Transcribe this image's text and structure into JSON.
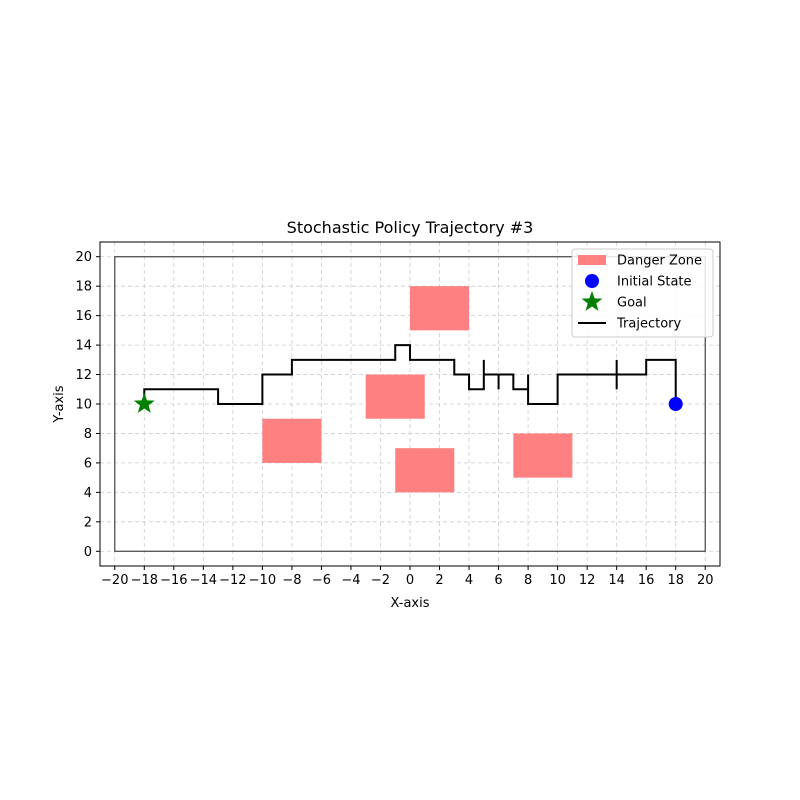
{
  "chart_data": {
    "type": "line",
    "title": "Stochastic Policy Trajectory #3",
    "xlabel": "X-axis",
    "ylabel": "Y-axis",
    "xlim": [
      -21,
      21
    ],
    "ylim": [
      -1,
      21
    ],
    "xticks": [
      -20,
      -18,
      -16,
      -14,
      -12,
      -10,
      -8,
      -6,
      -4,
      -2,
      0,
      2,
      4,
      6,
      8,
      10,
      12,
      14,
      16,
      18,
      20
    ],
    "yticks": [
      0,
      2,
      4,
      6,
      8,
      10,
      12,
      14,
      16,
      18,
      20
    ],
    "grid": true,
    "legend_position": "top-right",
    "boundary": {
      "x": [
        -20,
        20
      ],
      "y": [
        0,
        20
      ]
    },
    "danger_zones": [
      {
        "x": 0,
        "y": 15,
        "width": 4,
        "height": 3
      },
      {
        "x": -3,
        "y": 9,
        "width": 4,
        "height": 3
      },
      {
        "x": -10,
        "y": 6,
        "width": 4,
        "height": 3
      },
      {
        "x": -1,
        "y": 4,
        "width": 4,
        "height": 3
      },
      {
        "x": 7,
        "y": 5,
        "width": 4,
        "height": 3
      }
    ],
    "initial_state": {
      "x": 18,
      "y": 10
    },
    "goal": {
      "x": -18,
      "y": 10
    },
    "trajectory": [
      [
        18,
        10
      ],
      [
        18,
        13
      ],
      [
        16,
        13
      ],
      [
        16,
        12
      ],
      [
        14,
        12
      ],
      [
        14,
        13
      ],
      [
        14,
        11
      ],
      [
        14,
        12
      ],
      [
        10,
        12
      ],
      [
        10,
        10
      ],
      [
        8,
        10
      ],
      [
        8,
        12
      ],
      [
        8,
        11
      ],
      [
        7,
        11
      ],
      [
        7,
        12
      ],
      [
        6,
        12
      ],
      [
        6,
        11
      ],
      [
        6,
        12
      ],
      [
        5,
        12
      ],
      [
        5,
        13
      ],
      [
        5,
        11
      ],
      [
        4,
        11
      ],
      [
        4,
        12
      ],
      [
        3,
        12
      ],
      [
        3,
        13
      ],
      [
        0,
        13
      ],
      [
        0,
        14
      ],
      [
        -1,
        14
      ],
      [
        -1,
        13
      ],
      [
        -8,
        13
      ],
      [
        -8,
        12
      ],
      [
        -10,
        12
      ],
      [
        -10,
        10
      ],
      [
        -13,
        10
      ],
      [
        -13,
        11
      ],
      [
        -18,
        11
      ],
      [
        -18,
        10
      ]
    ],
    "legend": [
      "Danger Zone",
      "Initial State",
      "Goal",
      "Trajectory"
    ],
    "colors": {
      "danger_zone": "#ff8080",
      "initial_state": "#0000ff",
      "goal": "#008000",
      "trajectory": "#000000",
      "grid": "#cccccc"
    }
  }
}
